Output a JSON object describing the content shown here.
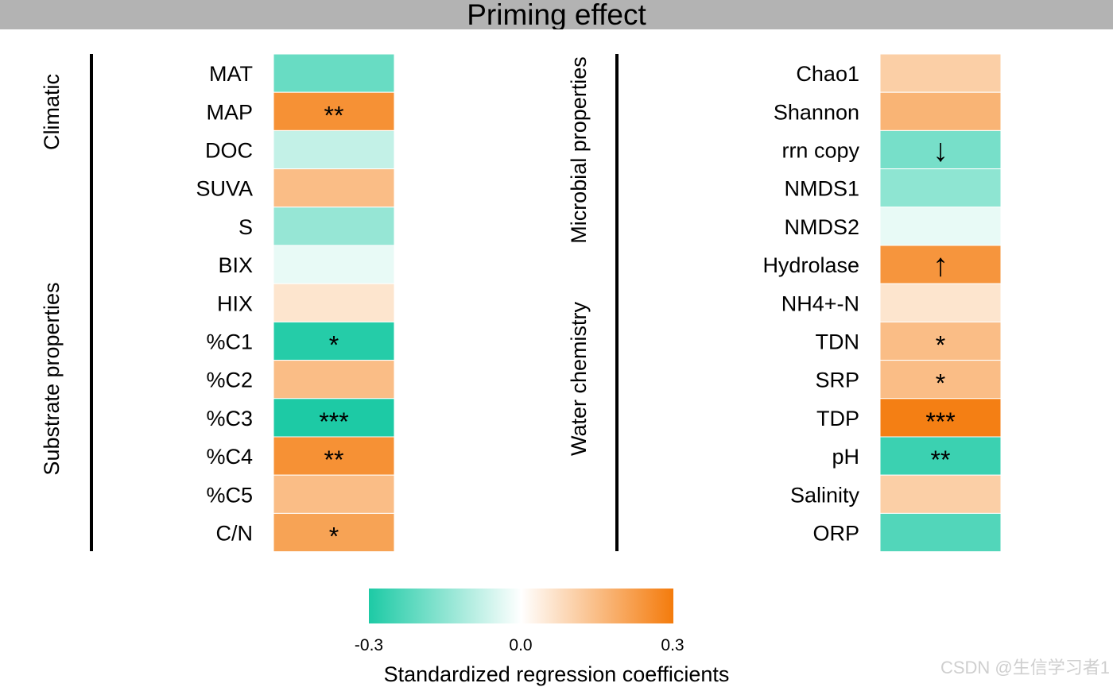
{
  "title": "Priming effect",
  "colors": {
    "negative": "#1dcaa5",
    "zero": "#ffffff",
    "positive": "#f47b0c",
    "title_bar": "#b3b3b3"
  },
  "chart_data": [
    {
      "type": "heatmap",
      "panel": "left",
      "groups": [
        "Climatic",
        "Substrate properties"
      ],
      "rows": [
        {
          "label": "MAT",
          "value": -0.2,
          "mark": ""
        },
        {
          "label": "MAP",
          "value": 0.25,
          "mark": "**"
        },
        {
          "label": "DOC",
          "value": -0.08,
          "mark": ""
        },
        {
          "label": "SUVA",
          "value": 0.15,
          "mark": ""
        },
        {
          "label": "S",
          "value": -0.14,
          "mark": ""
        },
        {
          "label": "BIX",
          "value": -0.03,
          "mark": ""
        },
        {
          "label": "HIX",
          "value": 0.06,
          "mark": ""
        },
        {
          "label": "%C1",
          "value": -0.29,
          "mark": "*"
        },
        {
          "label": "%C2",
          "value": 0.15,
          "mark": ""
        },
        {
          "label": "%C3",
          "value": -0.3,
          "mark": "***"
        },
        {
          "label": "%C4",
          "value": 0.25,
          "mark": "**"
        },
        {
          "label": "%C5",
          "value": 0.15,
          "mark": ""
        },
        {
          "label": "C/N",
          "value": 0.21,
          "mark": "*"
        }
      ]
    },
    {
      "type": "heatmap",
      "panel": "right",
      "groups": [
        "Microbial properties",
        "Water chemistry"
      ],
      "rows": [
        {
          "label": "Chao1",
          "value": 0.11,
          "mark": ""
        },
        {
          "label": "Shannon",
          "value": 0.17,
          "mark": ""
        },
        {
          "label": "rrn copy",
          "value": -0.18,
          "mark": "↓"
        },
        {
          "label": "NMDS1",
          "value": -0.15,
          "mark": ""
        },
        {
          "label": "NMDS2",
          "value": -0.03,
          "mark": ""
        },
        {
          "label": "Hydrolase",
          "value": 0.24,
          "mark": "↑"
        },
        {
          "label": "NH4+-N",
          "value": 0.06,
          "mark": ""
        },
        {
          "label": "TDN",
          "value": 0.15,
          "mark": "*"
        },
        {
          "label": "SRP",
          "value": 0.15,
          "mark": "*"
        },
        {
          "label": "TDP",
          "value": 0.29,
          "mark": "***"
        },
        {
          "label": "pH",
          "value": -0.26,
          "mark": "**"
        },
        {
          "label": "Salinity",
          "value": 0.11,
          "mark": ""
        },
        {
          "label": "ORP",
          "value": -0.23,
          "mark": ""
        }
      ]
    }
  ],
  "legend": {
    "title": "Standardized regression coefficients",
    "min": -0.3,
    "max": 0.3,
    "ticks": [
      "-0.3",
      "0.0",
      "0.3"
    ]
  },
  "watermark": "CSDN @生信学习者1"
}
